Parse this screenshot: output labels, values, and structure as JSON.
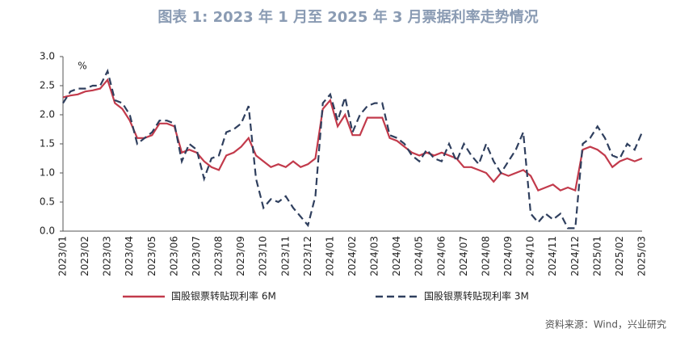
{
  "chart_data": {
    "type": "line",
    "title": "图表 1:  2023 年 1 月至 2025 年 3 月票据利率走势情况",
    "y_unit": "%",
    "source": "资料来源：Wind，兴业研究",
    "categories": [
      "2023/01",
      null,
      null,
      "2023/02",
      null,
      null,
      "2023/03",
      null,
      null,
      "2023/04",
      null,
      null,
      "2023/05",
      null,
      null,
      "2023/06",
      null,
      null,
      "2023/07",
      null,
      null,
      "2023/08",
      null,
      null,
      "2023/09",
      null,
      null,
      "2023/10",
      null,
      null,
      "2023/11",
      null,
      null,
      "2023/12",
      null,
      null,
      "2024/01",
      null,
      null,
      "2024/02",
      null,
      null,
      "2024/03",
      null,
      null,
      "2024/04",
      null,
      null,
      "2024/05",
      null,
      null,
      "2024/06",
      null,
      null,
      "2024/07",
      null,
      null,
      "2024/08",
      null,
      null,
      "2024/09",
      null,
      null,
      "2024/10",
      null,
      null,
      "2024/11",
      null,
      null,
      "2024/12",
      null,
      null,
      "2025/01",
      null,
      null,
      "2025/02",
      null,
      null,
      "2025/03"
    ],
    "series": [
      {
        "name": "国股银票转贴现利率 6M",
        "color": "#c23a4b",
        "dashed": false,
        "values": [
          2.3,
          2.33,
          2.35,
          2.4,
          2.42,
          2.45,
          2.6,
          2.2,
          2.1,
          1.9,
          1.6,
          1.6,
          1.65,
          1.85,
          1.85,
          1.8,
          1.35,
          1.4,
          1.35,
          1.2,
          1.1,
          1.05,
          1.3,
          1.35,
          1.45,
          1.6,
          1.3,
          1.2,
          1.1,
          1.15,
          1.1,
          1.2,
          1.1,
          1.15,
          1.25,
          2.1,
          2.25,
          1.8,
          2.0,
          1.65,
          1.65,
          1.95,
          1.95,
          1.95,
          1.6,
          1.55,
          1.45,
          1.35,
          1.3,
          1.35,
          1.3,
          1.35,
          1.3,
          1.25,
          1.1,
          1.1,
          1.05,
          1.0,
          0.85,
          1.0,
          0.95,
          1.0,
          1.05,
          0.95,
          0.7,
          0.75,
          0.8,
          0.7,
          0.75,
          0.7,
          1.4,
          1.45,
          1.4,
          1.3,
          1.1,
          1.2,
          1.25,
          1.2,
          1.25
        ]
      },
      {
        "name": "国股银票转贴现利率 3M",
        "color": "#2f3f5e",
        "dashed": true,
        "values": [
          2.2,
          2.4,
          2.45,
          2.45,
          2.5,
          2.5,
          2.75,
          2.25,
          2.2,
          2.0,
          1.5,
          1.6,
          1.7,
          1.9,
          1.9,
          1.85,
          1.2,
          1.5,
          1.4,
          0.9,
          1.25,
          1.3,
          1.7,
          1.75,
          1.85,
          2.15,
          0.9,
          0.4,
          0.55,
          0.5,
          0.6,
          0.4,
          0.25,
          0.1,
          0.6,
          2.2,
          2.35,
          1.9,
          2.3,
          1.7,
          2.0,
          2.15,
          2.2,
          2.2,
          1.65,
          1.6,
          1.5,
          1.3,
          1.2,
          1.4,
          1.25,
          1.2,
          1.5,
          1.2,
          1.5,
          1.3,
          1.15,
          1.5,
          1.2,
          1.0,
          1.2,
          1.4,
          1.7,
          0.3,
          0.15,
          0.3,
          0.2,
          0.3,
          0.05,
          0.05,
          1.5,
          1.6,
          1.8,
          1.6,
          1.3,
          1.25,
          1.5,
          1.4,
          1.7
        ]
      }
    ],
    "ylim": [
      0,
      3
    ],
    "yticks": [
      {
        "value": 0,
        "label": "0.0"
      },
      {
        "value": 0.5,
        "label": "0.5"
      },
      {
        "value": 1,
        "label": "1.0"
      },
      {
        "value": 1.5,
        "label": "1.5"
      },
      {
        "value": 2,
        "label": "2.0"
      },
      {
        "value": 2.5,
        "label": "2.5"
      },
      {
        "value": 3,
        "label": "3.0"
      }
    ],
    "grid": false
  }
}
